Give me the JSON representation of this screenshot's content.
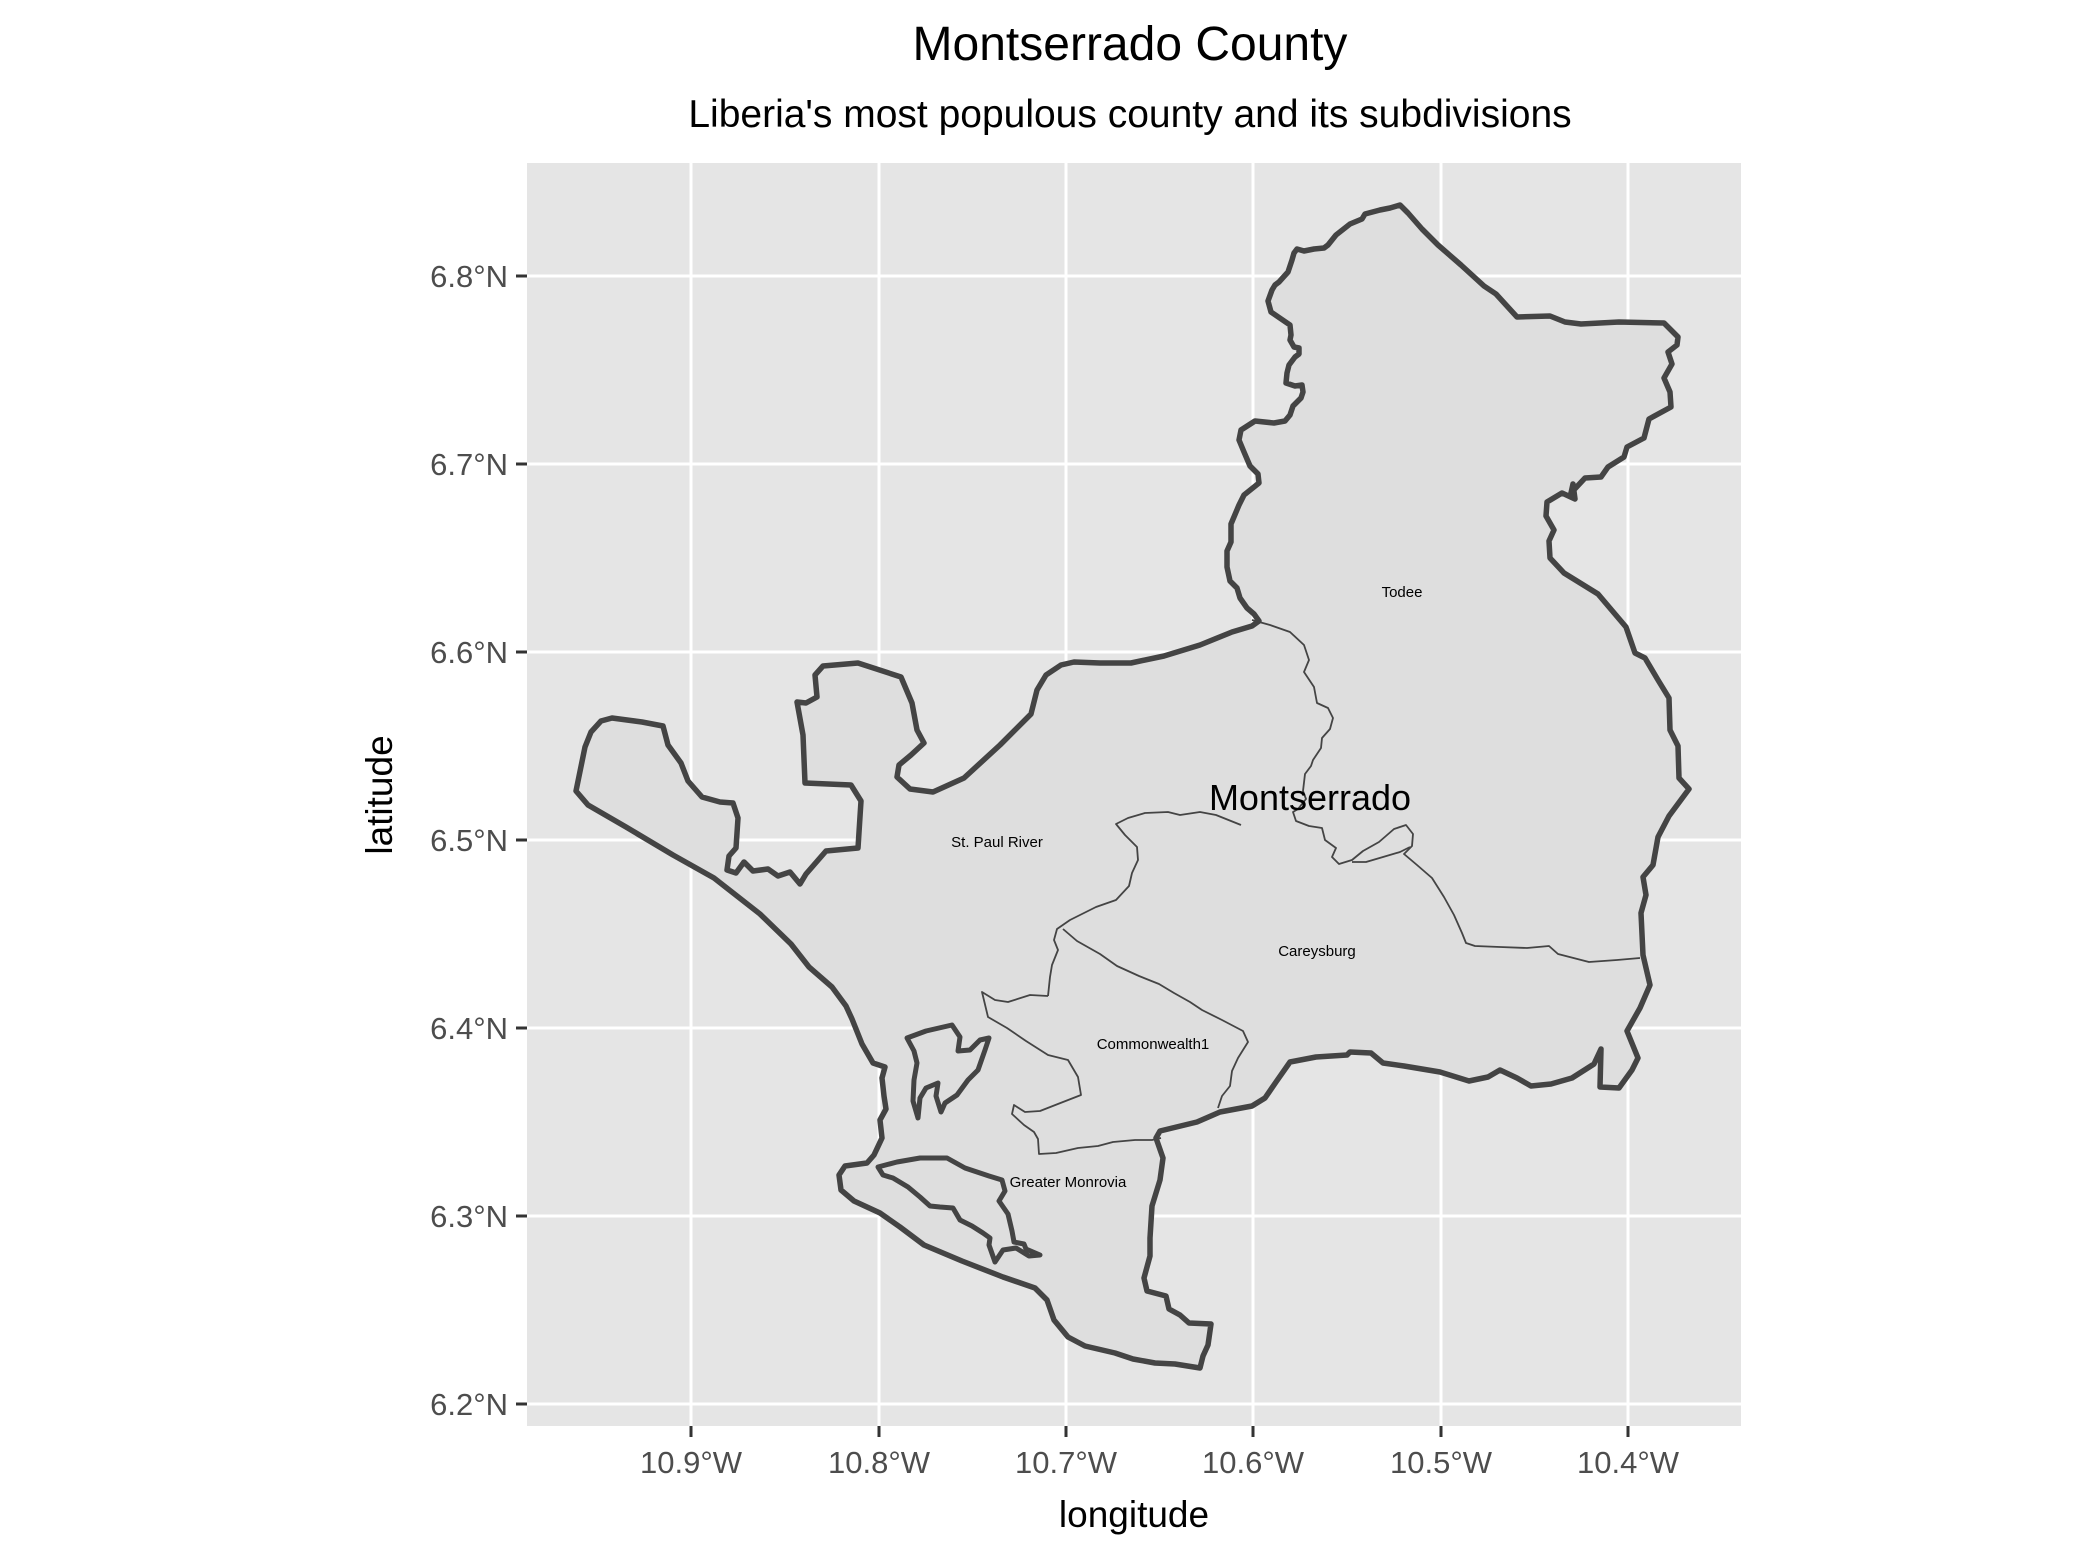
{
  "title": "Montserrado County",
  "subtitle": "Liberia's most populous county and its subdivisions",
  "x_axis": {
    "title": "longitude",
    "ticks": [
      "10.9°W",
      "10.8°W",
      "10.7°W",
      "10.6°W",
      "10.5°W",
      "10.4°W"
    ]
  },
  "y_axis": {
    "title": "latitude",
    "ticks": [
      "6.8°N",
      "6.7°N",
      "6.6°N",
      "6.5°N",
      "6.4°N",
      "6.3°N",
      "6.2°N"
    ]
  },
  "map": {
    "extent": {
      "lon_min": -10.987,
      "lon_max": -10.34,
      "lat_min": 6.187,
      "lat_max": 6.857
    },
    "county_label": "Montserrado",
    "districts": [
      {
        "name": "Todee",
        "label_lon": -10.525,
        "label_lat": 6.63
      },
      {
        "name": "St. Paul River",
        "label_lon": -10.758,
        "label_lat": 6.499
      },
      {
        "name": "Careysburg",
        "label_lon": -10.564,
        "label_lat": 6.441
      },
      {
        "name": "Commonwealth1",
        "label_lon": -10.671,
        "label_lat": 6.392
      },
      {
        "name": "Greater Monrovia",
        "label_lon": -10.715,
        "label_lat": 6.317
      }
    ],
    "colors": {
      "panel_background": "#e5e5e5",
      "grid": "#ffffff",
      "fill": "#dedede",
      "outline": "#444444"
    }
  }
}
